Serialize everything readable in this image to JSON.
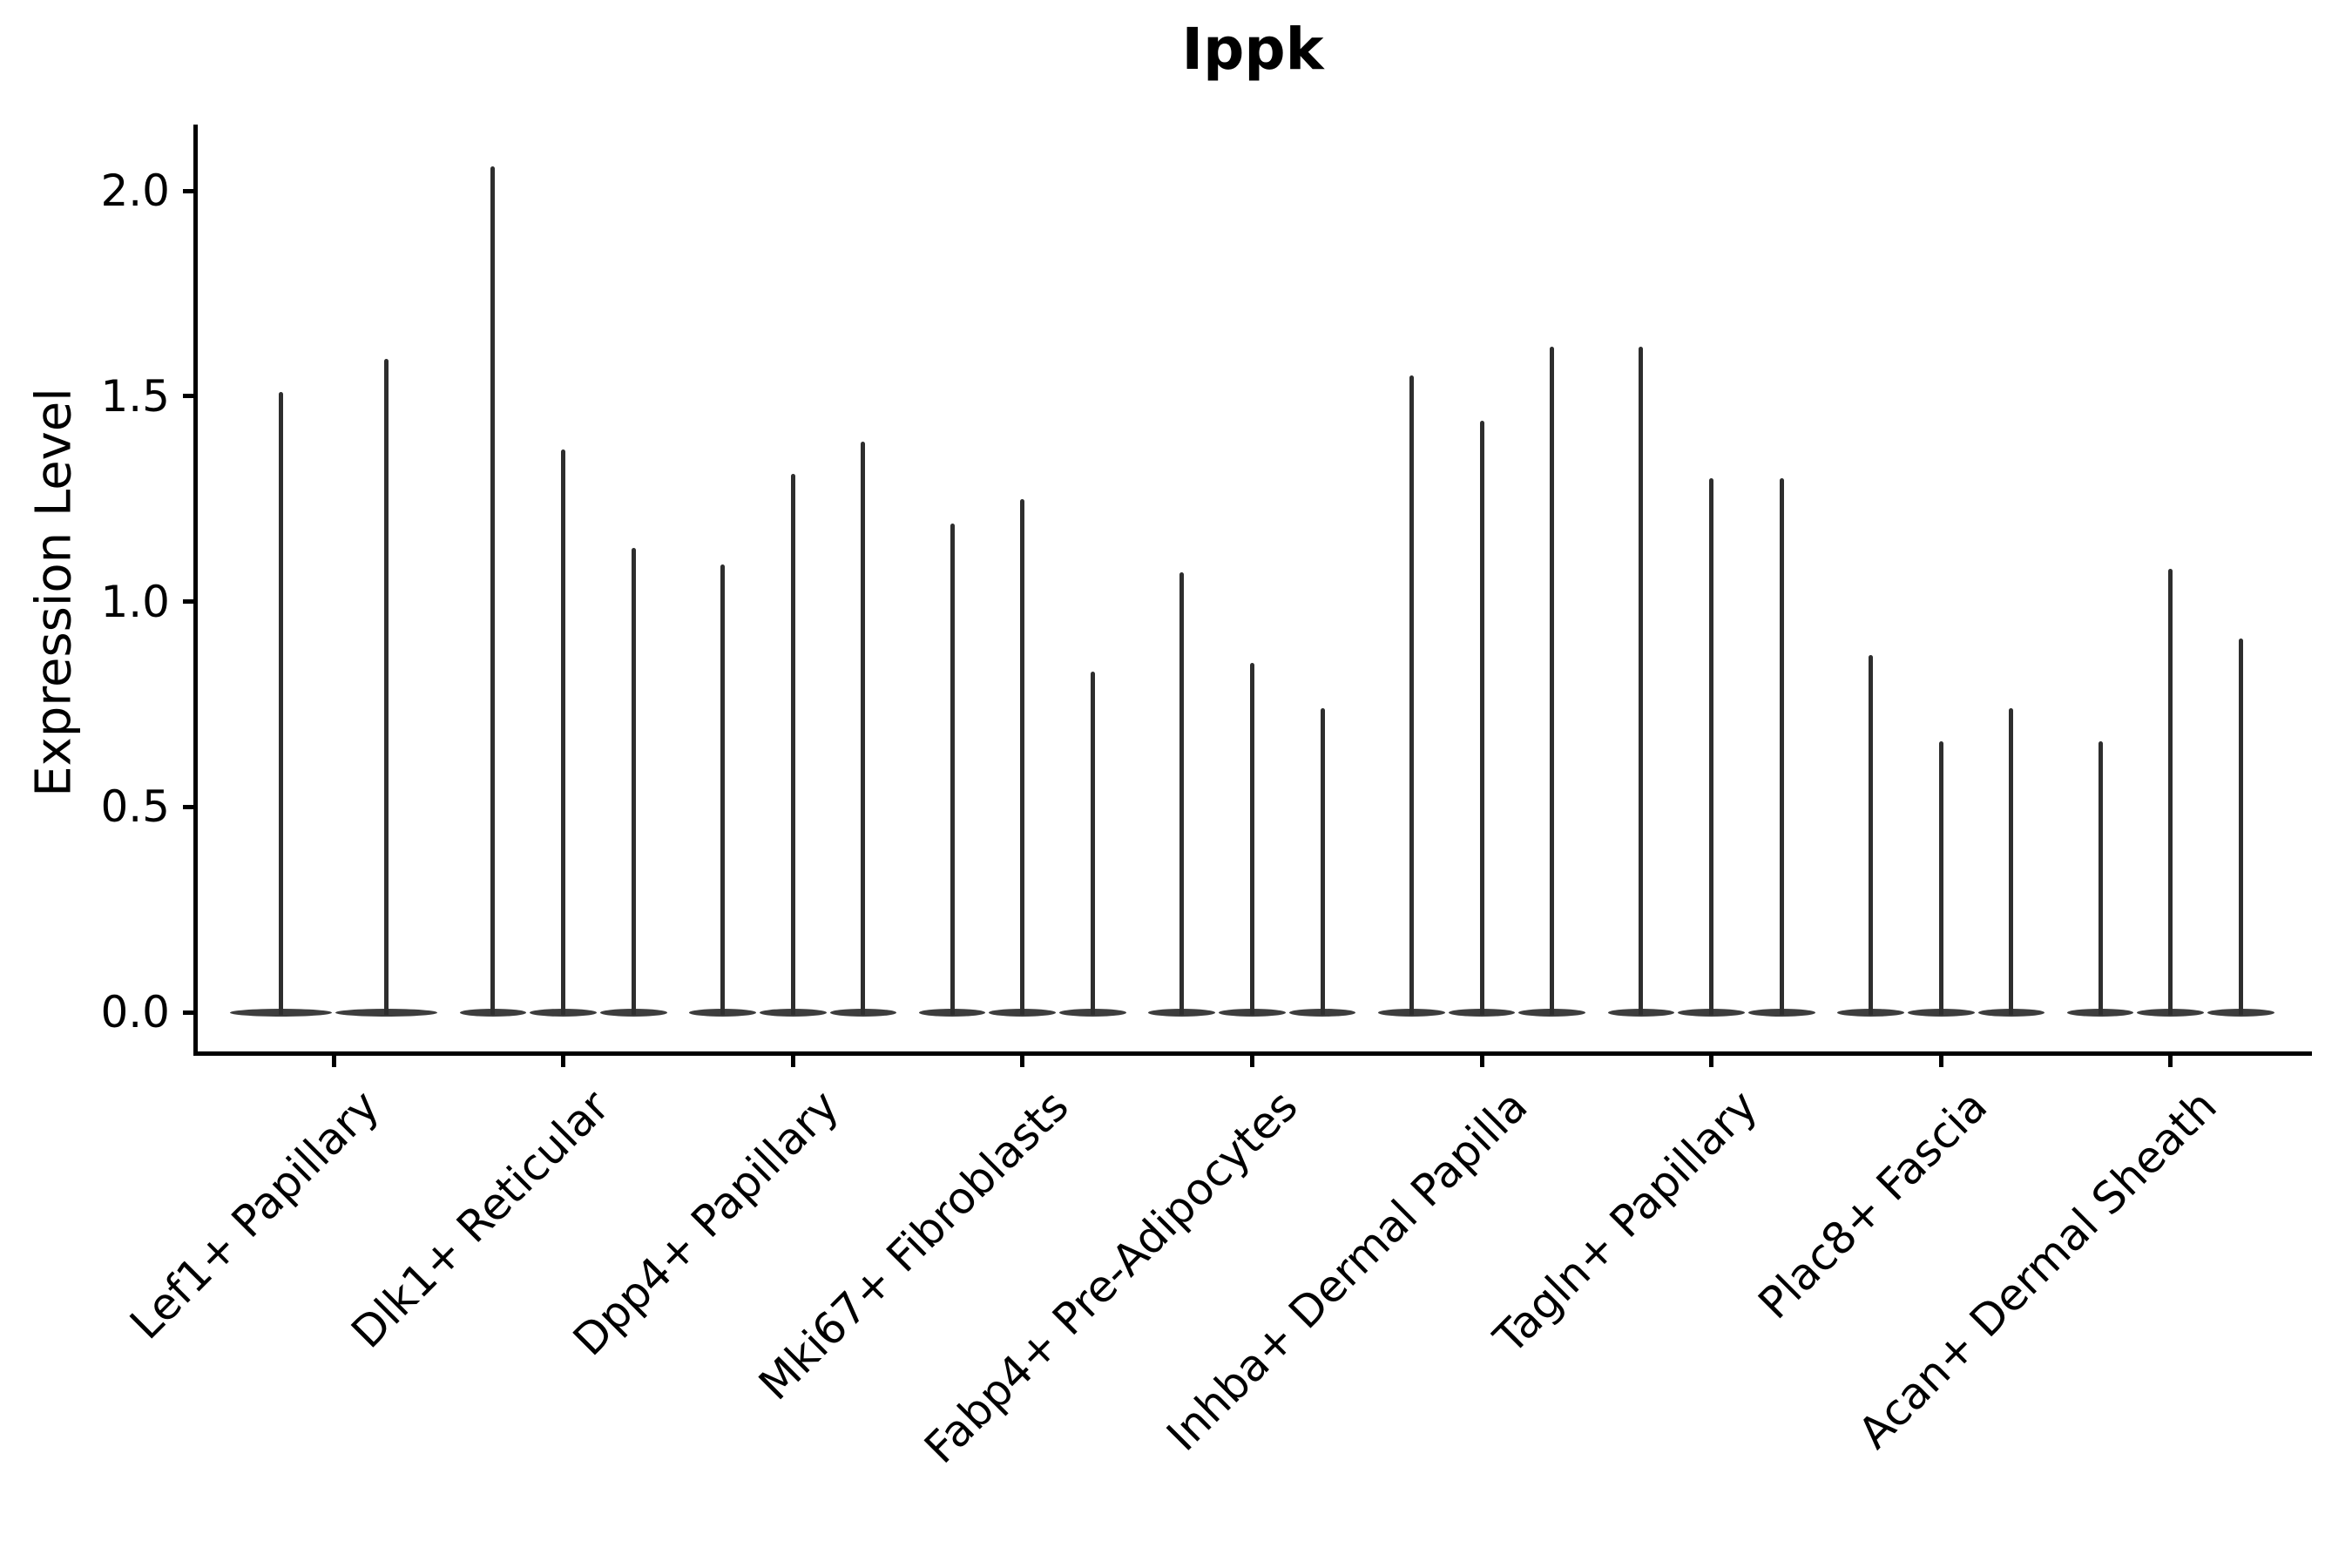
{
  "figure": {
    "title": "Ippk"
  },
  "colors": {
    "background": "#ffffff",
    "axis": "#000000",
    "text": "#000000",
    "violin": "#2e2e2e"
  },
  "chart_data": {
    "type": "violin",
    "title": "Ippk",
    "xlabel": "",
    "ylabel": "Expression Level",
    "ylim": [
      0,
      2.15
    ],
    "yticks": [
      0.0,
      0.5,
      1.0,
      1.5,
      2.0
    ],
    "ytick_labels": [
      "0.0",
      "0.5",
      "1.0",
      "1.5",
      "2.0"
    ],
    "grid": false,
    "legend": "none",
    "description": "Thin spike-like violins (low expressing fraction); each category holds 2-3 violins whose flat bases sit at 0 and whose spikes reach the listed maximum expression value.",
    "categories": [
      "Lef1+ Papillary",
      "Dlk1+ Reticular",
      "Dpp4+ Papillary",
      "Mki67+ Fibroblasts",
      "Fabp4+ Pre-Adipocytes",
      "Inhba+ Dermal Papilla",
      "Tagln+ Papillary",
      "Plac8+ Fascia",
      "Acan+ Dermal Sheath"
    ],
    "groups": [
      {
        "category": "Lef1+ Papillary",
        "violin_max_values": [
          1.51,
          1.59
        ]
      },
      {
        "category": "Dlk1+ Reticular",
        "violin_max_values": [
          2.06,
          1.37,
          1.13
        ]
      },
      {
        "category": "Dpp4+ Papillary",
        "violin_max_values": [
          1.09,
          1.31,
          1.39
        ]
      },
      {
        "category": "Mki67+ Fibroblasts",
        "violin_max_values": [
          1.19,
          1.25,
          0.83
        ]
      },
      {
        "category": "Fabp4+ Pre-Adipocytes",
        "violin_max_values": [
          1.07,
          0.85,
          0.74
        ]
      },
      {
        "category": "Inhba+ Dermal Papilla",
        "violin_max_values": [
          1.55,
          1.44,
          1.62
        ]
      },
      {
        "category": "Tagln+ Papillary",
        "violin_max_values": [
          1.62,
          1.3,
          1.3
        ]
      },
      {
        "category": "Plac8+ Fascia",
        "violin_max_values": [
          0.87,
          0.66,
          0.74
        ]
      },
      {
        "category": "Acan+ Dermal Sheath",
        "violin_max_values": [
          0.66,
          1.08,
          0.91
        ]
      }
    ]
  }
}
